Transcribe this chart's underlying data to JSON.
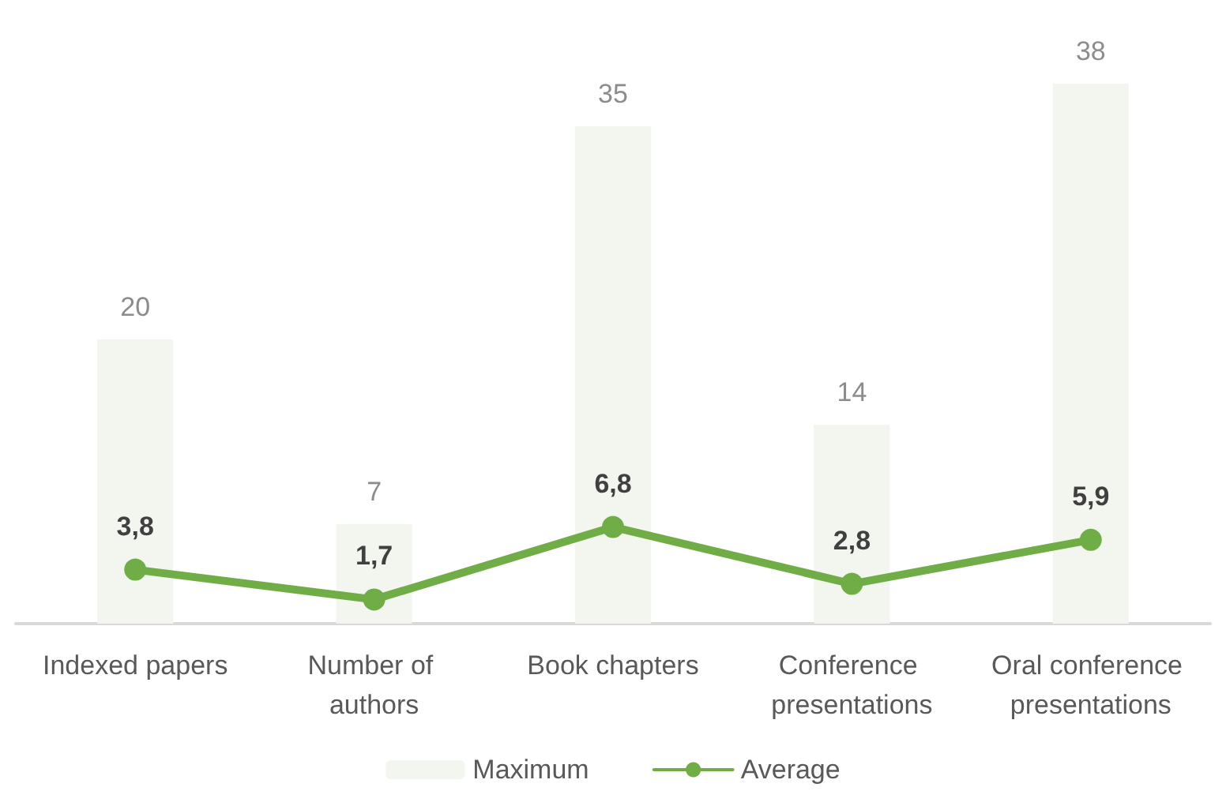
{
  "chart_data": {
    "type": "bar",
    "categories": [
      "Indexed papers",
      "Number of authors",
      "Book chapters",
      "Conference presentations",
      "Oral conference presentations"
    ],
    "series": [
      {
        "name": "Maximum",
        "color": "#f2f6ee",
        "values": [
          20,
          7,
          35,
          14,
          38
        ],
        "value_labels": [
          "20",
          "7",
          "35",
          "14",
          "38"
        ]
      },
      {
        "name": "Average",
        "type": "line",
        "color": "#70ad47",
        "values": [
          3.8,
          1.7,
          6.8,
          2.8,
          5.9
        ],
        "value_labels": [
          "3,8",
          "1,7",
          "6,8",
          "2,8",
          "5,9"
        ]
      }
    ],
    "legend": "bottom",
    "marker": "circle",
    "line_style": "solid"
  }
}
